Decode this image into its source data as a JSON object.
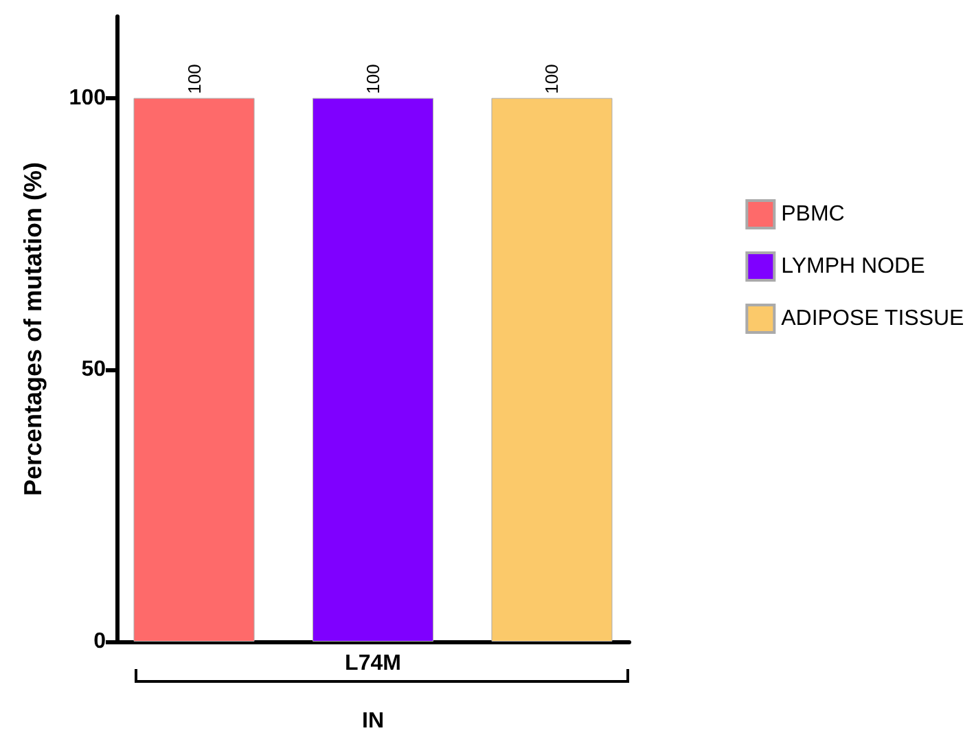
{
  "chart_data": {
    "type": "bar",
    "xlabel": "IN",
    "ylabel": "Percentages of mutation (%)",
    "categories": [
      "L74M"
    ],
    "series": [
      {
        "name": "PBMC",
        "color": "#fe6a6a",
        "values": [
          100
        ]
      },
      {
        "name": "LYMPH NODE",
        "color": "#7f00ff",
        "values": [
          100
        ]
      },
      {
        "name": "ADIPOSE TISSUE",
        "color": "#fbc96a",
        "values": [
          100
        ]
      }
    ],
    "ylim": [
      0,
      115
    ],
    "yticks": [
      0,
      50,
      100
    ],
    "data_labels": true,
    "grid": false,
    "legend": "right"
  }
}
